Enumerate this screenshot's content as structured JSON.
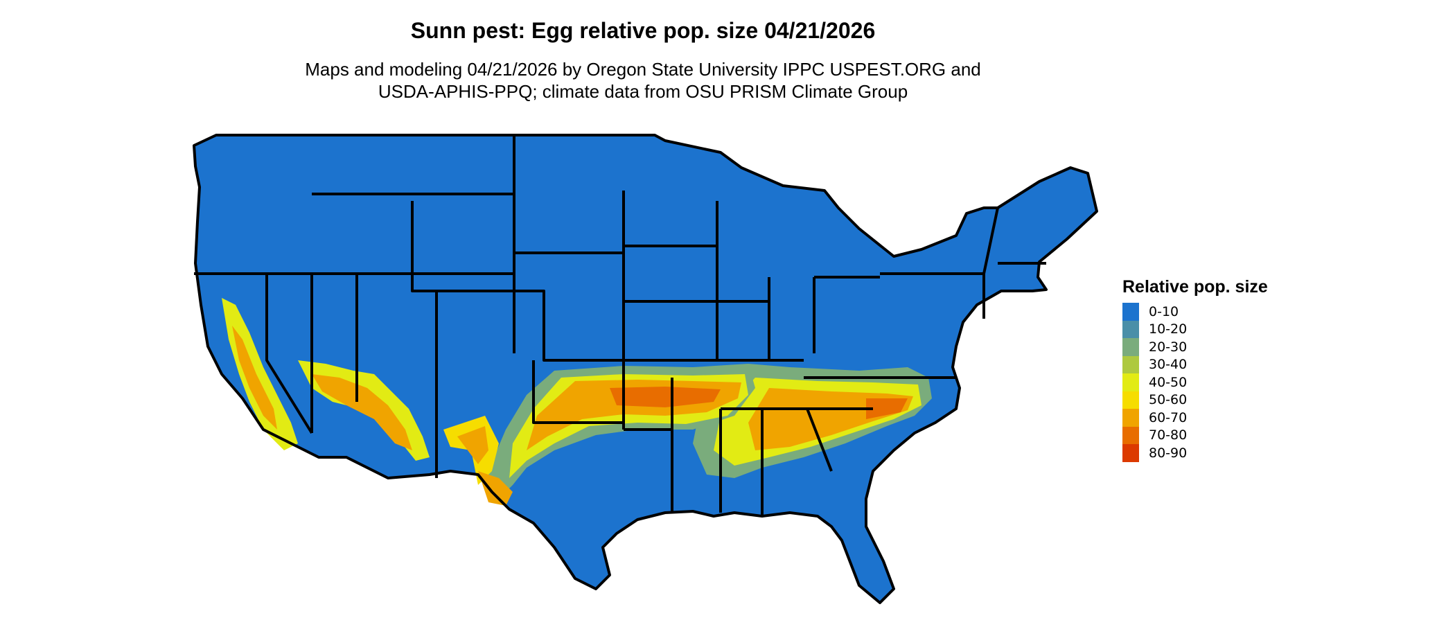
{
  "title": "Sunn pest: Egg relative pop. size 04/21/2026",
  "subtitle_line1": "Maps and modeling 04/21/2026 by Oregon State University IPPC USPEST.ORG and",
  "subtitle_line2": "USDA-APHIS-PPQ; climate data from OSU PRISM Climate Group",
  "map": {
    "region": "Contiguous United States",
    "base_color": "#1c73ce",
    "border_color": "#000000"
  },
  "legend": {
    "title": "Relative pop. size",
    "items": [
      {
        "label": "0-10",
        "color": "#1c73ce"
      },
      {
        "label": "10-20",
        "color": "#4a8fa8"
      },
      {
        "label": "20-30",
        "color": "#7aac7c"
      },
      {
        "label": "30-40",
        "color": "#aec93f"
      },
      {
        "label": "40-50",
        "color": "#e2eb14"
      },
      {
        "label": "50-60",
        "color": "#f6dd00"
      },
      {
        "label": "60-70",
        "color": "#f0a400"
      },
      {
        "label": "70-80",
        "color": "#e86d00"
      },
      {
        "label": "80-90",
        "color": "#dc3a00"
      }
    ]
  }
}
